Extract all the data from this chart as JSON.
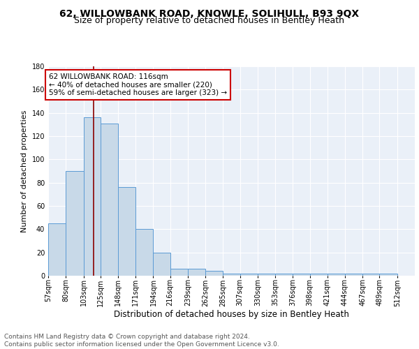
{
  "title1": "62, WILLOWBANK ROAD, KNOWLE, SOLIHULL, B93 9QX",
  "title2": "Size of property relative to detached houses in Bentley Heath",
  "xlabel": "Distribution of detached houses by size in Bentley Heath",
  "ylabel": "Number of detached properties",
  "footnote1": "Contains HM Land Registry data © Crown copyright and database right 2024.",
  "footnote2": "Contains public sector information licensed under the Open Government Licence v3.0.",
  "bin_labels": [
    "57sqm",
    "80sqm",
    "103sqm",
    "125sqm",
    "148sqm",
    "171sqm",
    "194sqm",
    "216sqm",
    "239sqm",
    "262sqm",
    "285sqm",
    "307sqm",
    "330sqm",
    "353sqm",
    "376sqm",
    "398sqm",
    "421sqm",
    "444sqm",
    "467sqm",
    "489sqm",
    "512sqm"
  ],
  "bins": [
    57,
    80,
    103,
    125,
    148,
    171,
    194,
    216,
    239,
    262,
    285,
    307,
    330,
    353,
    376,
    398,
    421,
    444,
    467,
    489,
    512
  ],
  "counts": [
    45,
    90,
    136,
    131,
    76,
    40,
    20,
    6,
    6,
    4,
    2,
    2,
    2,
    2,
    2,
    2,
    2,
    2,
    2,
    2
  ],
  "bar_color": "#c8d9e8",
  "bar_edge_color": "#5b9bd5",
  "vline_x": 116,
  "vline_color": "#8b0000",
  "annotation_text": "62 WILLOWBANK ROAD: 116sqm\n← 40% of detached houses are smaller (220)\n59% of semi-detached houses are larger (323) →",
  "annotation_box_color": "white",
  "annotation_box_edge_color": "#cc0000",
  "ylim": [
    0,
    180
  ],
  "yticks": [
    0,
    20,
    40,
    60,
    80,
    100,
    120,
    140,
    160,
    180
  ],
  "background_color": "#eaf0f8",
  "grid_color": "white",
  "title1_fontsize": 10,
  "title2_fontsize": 9,
  "xlabel_fontsize": 8.5,
  "ylabel_fontsize": 8,
  "tick_fontsize": 7,
  "annotation_fontsize": 7.5,
  "footnote_fontsize": 6.5
}
